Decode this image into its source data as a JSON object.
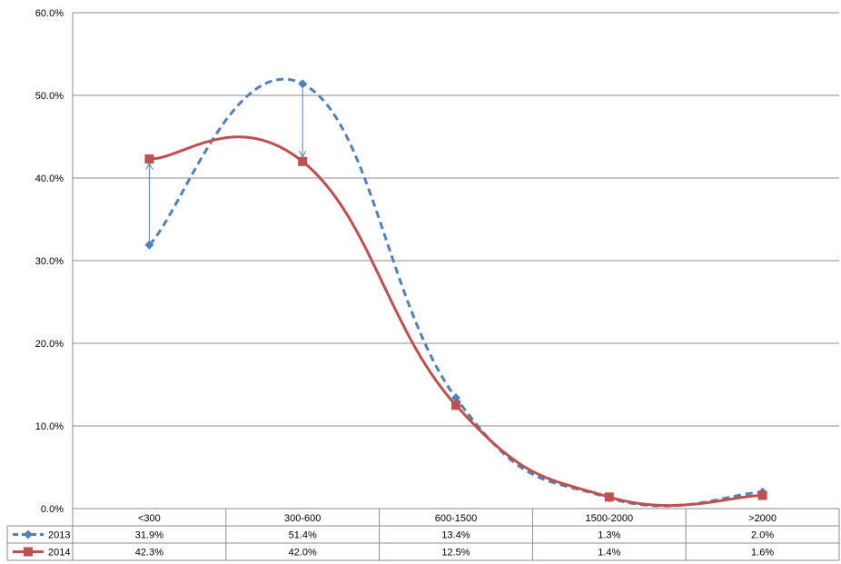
{
  "chart_data": {
    "type": "line",
    "categories": [
      "<300",
      "300-600",
      "600-1500",
      "1500-2000",
      ">2000"
    ],
    "series": [
      {
        "name": "2013",
        "values": [
          31.9,
          51.4,
          13.4,
          1.3,
          2.0
        ],
        "labels": [
          "31.9%",
          "51.4%",
          "13.4%",
          "1.3%",
          "2.0%"
        ],
        "color": "#4F81BD",
        "line_style": "dashed",
        "marker": "diamond"
      },
      {
        "name": "2014",
        "values": [
          42.3,
          42.0,
          12.5,
          1.4,
          1.6
        ],
        "labels": [
          "42.3%",
          "42.0%",
          "12.5%",
          "1.4%",
          "1.6%"
        ],
        "color": "#C0504D",
        "line_style": "solid",
        "marker": "square"
      }
    ],
    "y_ticks": [
      "0.0%",
      "10.0%",
      "20.0%",
      "30.0%",
      "40.0%",
      "50.0%",
      "60.0%"
    ],
    "ylim": [
      0,
      60
    ],
    "grid": true,
    "smoothed": true,
    "legend": "data-table",
    "arrow_color": "#4F81BD",
    "title": "",
    "xlabel": "",
    "ylabel": ""
  }
}
